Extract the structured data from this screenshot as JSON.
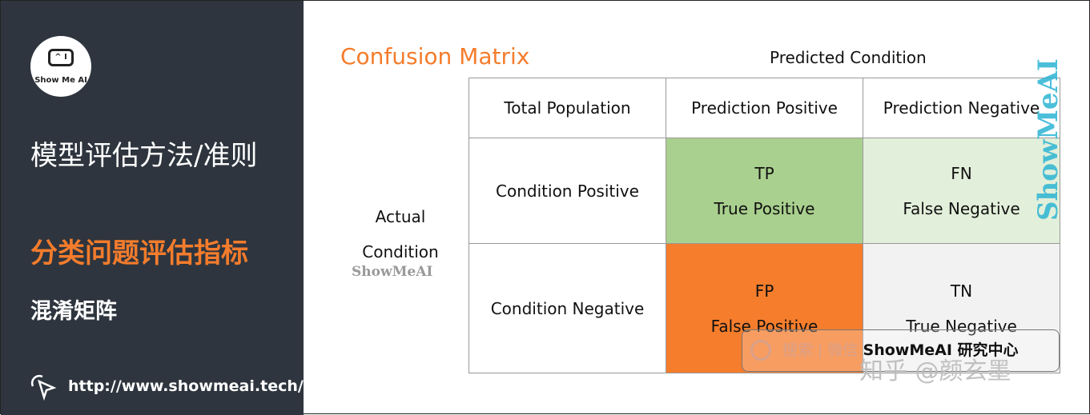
{
  "sidebar": {
    "logo_text": "Show Me AI",
    "logo_screen": "^ I",
    "title": "模型评估方法/准则",
    "section": "分类问题评估指标",
    "subsection": "混淆矩阵",
    "url": "http://www.showmeai.tech/"
  },
  "main": {
    "title": "Confusion Matrix",
    "predicted_label": "Predicted Condition",
    "actual_label_1": "Actual",
    "actual_label_2": "Condition",
    "watermark": "ShowMeAI",
    "header": [
      "Total Population",
      "Prediction Positive",
      "Prediction Negative"
    ],
    "rows": [
      {
        "label": "Condition Positive",
        "cells": [
          {
            "abbr": "TP",
            "name": "True Positive"
          },
          {
            "abbr": "FN",
            "name": "False Negative"
          }
        ]
      },
      {
        "label": "Condition Negative",
        "cells": [
          {
            "abbr": "FP",
            "name": "False Positive"
          },
          {
            "abbr": "TN",
            "name": "True Negative"
          }
        ]
      }
    ],
    "colors": {
      "tp": "#a9d08e",
      "fn": "#e2efda",
      "fp": "#f57d2c",
      "tn": "#f2f2f2",
      "accent": "#f47c2c"
    }
  },
  "overlay": {
    "vertical_watermark": "ShowMeAI",
    "search_text": "搜索 | 微信",
    "search_brand": "ShowMeAI 研究中心",
    "zhihu": "知乎 @颜玄墨"
  }
}
